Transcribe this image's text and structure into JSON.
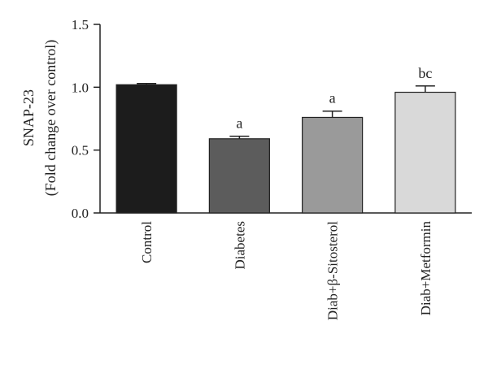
{
  "chart_data": {
    "type": "bar",
    "ylabel_line1": "SNAP-23",
    "ylabel_line2": "(Fold change over control)",
    "ylim": [
      0,
      1.5
    ],
    "yticks": [
      "0.0",
      "0.5",
      "1.0",
      "1.5"
    ],
    "ytick_values": [
      0,
      0.5,
      1.0,
      1.5
    ],
    "categories": [
      "Control",
      "Diabetes",
      "Diab+β-Sitosterol",
      "Diab+Metformin"
    ],
    "values": [
      1.02,
      0.59,
      0.76,
      0.96
    ],
    "errors": [
      0.01,
      0.02,
      0.05,
      0.05
    ],
    "annotations": [
      "",
      "a",
      "a",
      "bc"
    ],
    "colors": [
      "#1c1c1c",
      "#5c5c5c",
      "#9a9a9a",
      "#d9d9d9"
    ],
    "grid": false,
    "legend": "none"
  }
}
